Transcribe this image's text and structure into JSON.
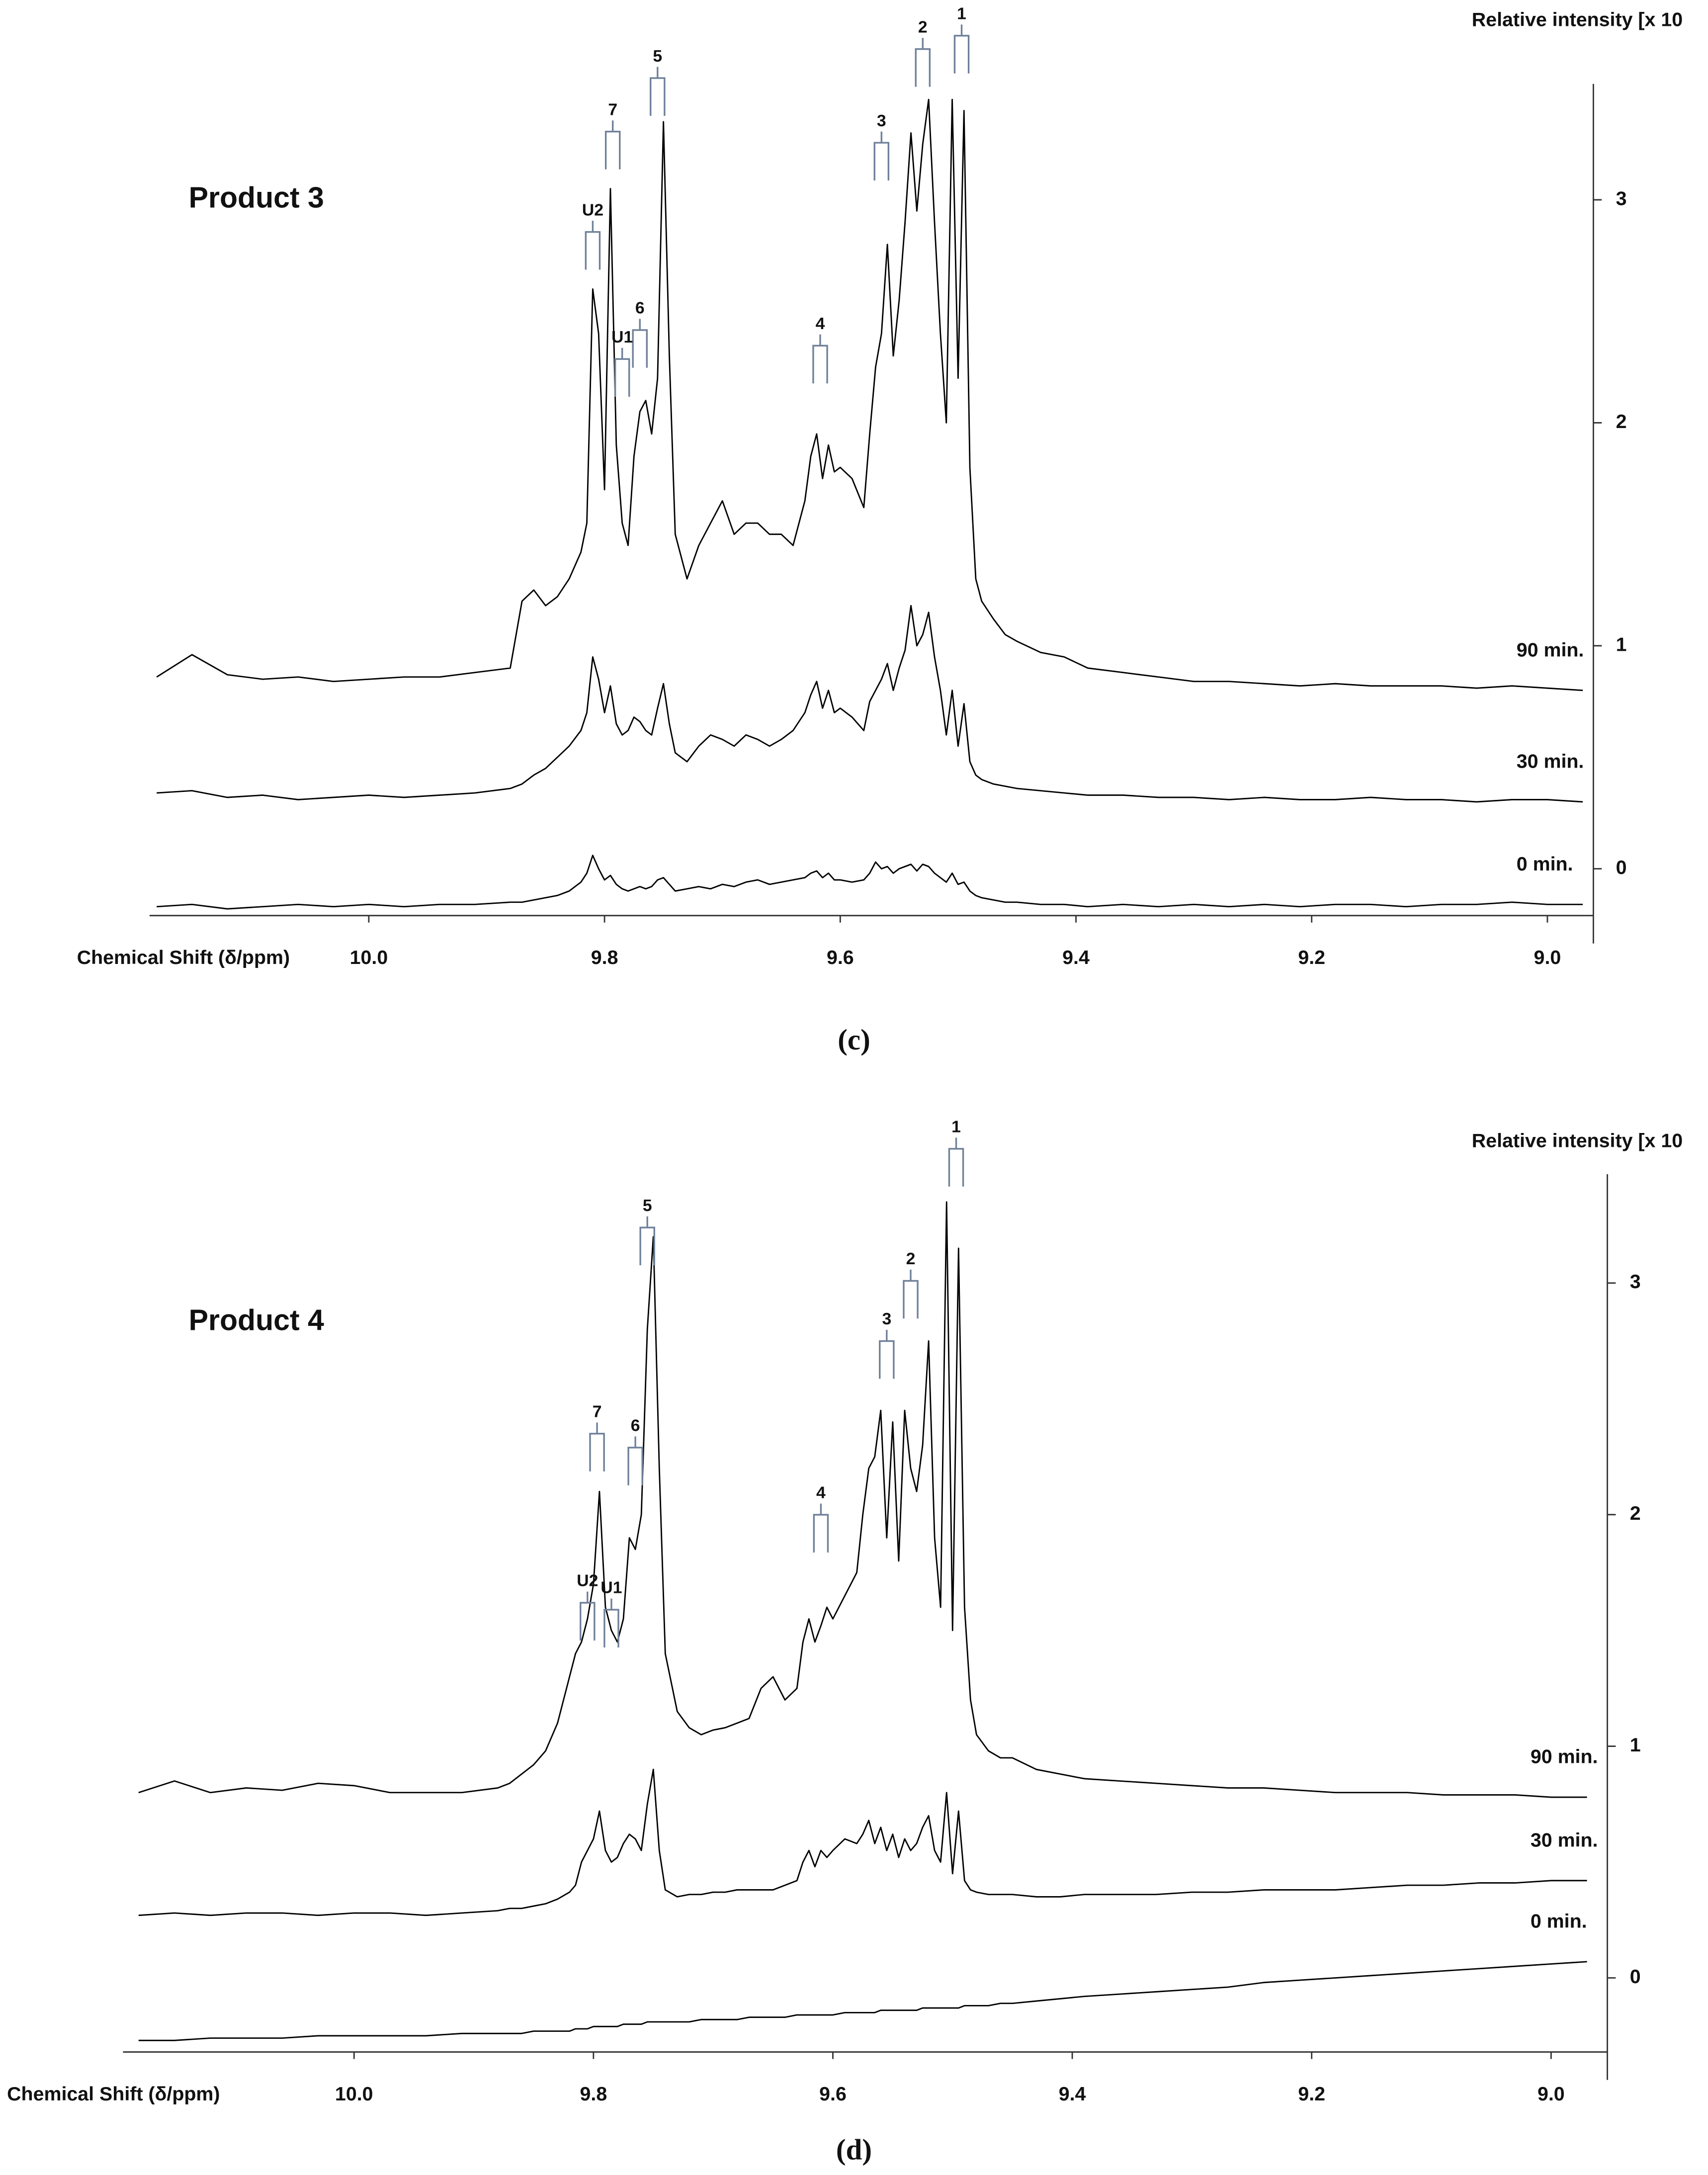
{
  "chart_data": [
    {
      "type": "line",
      "title": "Product 3",
      "caption": "(c)",
      "xlabel": "Chemical Shift (δ/ppm)",
      "ylabel": "Relative intensity [x 10",
      "xlim": [
        10.186,
        8.961
      ],
      "ylim": [
        -0.21,
        3.52
      ],
      "xticks": [
        {
          "value": 10,
          "label": "10.0"
        },
        9.8,
        9.6,
        9.4,
        9.2,
        {
          "value": 9,
          "label": "9.0"
        }
      ],
      "yticks": [
        0,
        1,
        2,
        3
      ],
      "x": [
        10.18,
        10.15,
        10.12,
        10.09,
        10.06,
        10.03,
        10.0,
        9.97,
        9.94,
        9.91,
        9.88,
        9.87,
        9.86,
        9.85,
        9.84,
        9.83,
        9.82,
        9.815,
        9.81,
        9.805,
        9.8,
        9.795,
        9.79,
        9.785,
        9.78,
        9.775,
        9.77,
        9.765,
        9.76,
        9.755,
        9.75,
        9.745,
        9.74,
        9.73,
        9.72,
        9.71,
        9.7,
        9.69,
        9.68,
        9.67,
        9.66,
        9.65,
        9.64,
        9.63,
        9.625,
        9.62,
        9.615,
        9.61,
        9.605,
        9.6,
        9.59,
        9.58,
        9.575,
        9.57,
        9.565,
        9.56,
        9.555,
        9.55,
        9.545,
        9.54,
        9.535,
        9.53,
        9.525,
        9.52,
        9.515,
        9.51,
        9.505,
        9.5,
        9.495,
        9.49,
        9.485,
        9.48,
        9.47,
        9.46,
        9.45,
        9.43,
        9.41,
        9.39,
        9.36,
        9.33,
        9.3,
        9.27,
        9.24,
        9.21,
        9.18,
        9.15,
        9.12,
        9.09,
        9.06,
        9.03,
        9.0,
        8.97
      ],
      "series": [
        {
          "name": "90 min.",
          "color": "#000000",
          "values": [
            0.86,
            0.96,
            0.87,
            0.85,
            0.86,
            0.84,
            0.85,
            0.86,
            0.86,
            0.88,
            0.9,
            1.2,
            1.25,
            1.18,
            1.22,
            1.3,
            1.42,
            1.55,
            2.6,
            2.4,
            1.7,
            3.05,
            1.9,
            1.55,
            1.45,
            1.85,
            2.05,
            2.1,
            1.95,
            2.2,
            3.35,
            2.3,
            1.5,
            1.3,
            1.45,
            1.55,
            1.65,
            1.5,
            1.55,
            1.55,
            1.5,
            1.5,
            1.45,
            1.65,
            1.85,
            1.95,
            1.75,
            1.9,
            1.78,
            1.8,
            1.75,
            1.62,
            1.95,
            2.25,
            2.4,
            2.8,
            2.3,
            2.55,
            2.9,
            3.3,
            2.95,
            3.25,
            3.45,
            2.9,
            2.4,
            2.0,
            3.45,
            2.2,
            3.4,
            1.8,
            1.3,
            1.2,
            1.12,
            1.05,
            1.02,
            0.97,
            0.95,
            0.9,
            0.88,
            0.86,
            0.84,
            0.84,
            0.83,
            0.82,
            0.83,
            0.82,
            0.82,
            0.82,
            0.81,
            0.82,
            0.81,
            0.8
          ]
        },
        {
          "name": "30 min.",
          "color": "#000000",
          "values": [
            0.34,
            0.35,
            0.32,
            0.33,
            0.31,
            0.32,
            0.33,
            0.32,
            0.33,
            0.34,
            0.36,
            0.38,
            0.42,
            0.45,
            0.5,
            0.55,
            0.62,
            0.7,
            0.95,
            0.85,
            0.7,
            0.82,
            0.65,
            0.6,
            0.62,
            0.68,
            0.66,
            0.62,
            0.6,
            0.72,
            0.83,
            0.65,
            0.52,
            0.48,
            0.55,
            0.6,
            0.58,
            0.55,
            0.6,
            0.58,
            0.55,
            0.58,
            0.62,
            0.7,
            0.78,
            0.84,
            0.72,
            0.8,
            0.7,
            0.72,
            0.68,
            0.62,
            0.75,
            0.8,
            0.85,
            0.92,
            0.8,
            0.9,
            0.98,
            1.18,
            1.0,
            1.05,
            1.15,
            0.95,
            0.8,
            0.6,
            0.8,
            0.55,
            0.74,
            0.48,
            0.42,
            0.4,
            0.38,
            0.37,
            0.36,
            0.35,
            0.34,
            0.33,
            0.33,
            0.32,
            0.32,
            0.31,
            0.32,
            0.31,
            0.31,
            0.32,
            0.31,
            0.31,
            0.3,
            0.31,
            0.31,
            0.3
          ]
        },
        {
          "name": "0 min.",
          "color": "#000000",
          "values": [
            -0.17,
            -0.16,
            -0.18,
            -0.17,
            -0.16,
            -0.17,
            -0.16,
            -0.17,
            -0.16,
            -0.16,
            -0.15,
            -0.15,
            -0.14,
            -0.13,
            -0.12,
            -0.1,
            -0.06,
            -0.02,
            0.06,
            0.0,
            -0.05,
            -0.03,
            -0.07,
            -0.09,
            -0.1,
            -0.09,
            -0.08,
            -0.09,
            -0.08,
            -0.05,
            -0.04,
            -0.07,
            -0.1,
            -0.09,
            -0.08,
            -0.09,
            -0.07,
            -0.08,
            -0.06,
            -0.05,
            -0.07,
            -0.06,
            -0.05,
            -0.04,
            -0.02,
            -0.01,
            -0.04,
            -0.02,
            -0.05,
            -0.05,
            -0.06,
            -0.05,
            -0.02,
            0.03,
            0.0,
            0.01,
            -0.02,
            0.0,
            0.01,
            0.02,
            -0.01,
            0.02,
            0.01,
            -0.02,
            -0.04,
            -0.06,
            -0.02,
            -0.07,
            -0.06,
            -0.1,
            -0.12,
            -0.13,
            -0.14,
            -0.15,
            -0.15,
            -0.16,
            -0.16,
            -0.17,
            -0.16,
            -0.17,
            -0.16,
            -0.17,
            -0.16,
            -0.17,
            -0.16,
            -0.16,
            -0.17,
            -0.16,
            -0.16,
            -0.15,
            -0.16,
            -0.16
          ]
        }
      ],
      "annotations": [
        {
          "text": "1",
          "x": 9.497,
          "y": 3.83
        },
        {
          "text": "2",
          "x": 9.53,
          "y": 3.77
        },
        {
          "text": "3",
          "x": 9.565,
          "y": 3.35
        },
        {
          "text": "4",
          "x": 9.617,
          "y": 2.44
        },
        {
          "text": "5",
          "x": 9.755,
          "y": 3.64
        },
        {
          "text": "6",
          "x": 9.77,
          "y": 2.51
        },
        {
          "text": "7",
          "x": 9.793,
          "y": 3.4
        },
        {
          "text": "U1",
          "x": 9.785,
          "y": 2.38
        },
        {
          "text": "U2",
          "x": 9.81,
          "y": 2.95
        }
      ]
    },
    {
      "type": "line",
      "title": "Product 4",
      "caption": "(d)",
      "xlabel": "Chemical Shift (δ/ppm)",
      "ylabel": "Relative intensity [x 10",
      "xlim": [
        10.193,
        8.953
      ],
      "ylim": [
        -0.32,
        3.47
      ],
      "xticks": [
        {
          "value": 10,
          "label": "10.0"
        },
        9.8,
        9.6,
        9.4,
        9.2,
        {
          "value": 9,
          "label": "9.0"
        }
      ],
      "yticks": [
        0,
        1,
        2,
        3
      ],
      "x": [
        10.18,
        10.15,
        10.12,
        10.09,
        10.06,
        10.03,
        10.0,
        9.97,
        9.94,
        9.91,
        9.88,
        9.87,
        9.86,
        9.85,
        9.84,
        9.83,
        9.82,
        9.815,
        9.81,
        9.805,
        9.8,
        9.795,
        9.79,
        9.785,
        9.78,
        9.775,
        9.77,
        9.765,
        9.76,
        9.755,
        9.75,
        9.745,
        9.74,
        9.73,
        9.72,
        9.71,
        9.7,
        9.69,
        9.68,
        9.67,
        9.66,
        9.65,
        9.64,
        9.63,
        9.625,
        9.62,
        9.615,
        9.61,
        9.605,
        9.6,
        9.59,
        9.58,
        9.575,
        9.57,
        9.565,
        9.56,
        9.555,
        9.55,
        9.545,
        9.54,
        9.535,
        9.53,
        9.525,
        9.52,
        9.515,
        9.51,
        9.505,
        9.5,
        9.495,
        9.49,
        9.485,
        9.48,
        9.47,
        9.46,
        9.45,
        9.43,
        9.41,
        9.39,
        9.36,
        9.33,
        9.3,
        9.27,
        9.24,
        9.21,
        9.18,
        9.15,
        9.12,
        9.09,
        9.06,
        9.03,
        9.0,
        8.97
      ],
      "series": [
        {
          "name": "90 min.",
          "color": "#000000",
          "values": [
            0.8,
            0.85,
            0.8,
            0.82,
            0.81,
            0.84,
            0.83,
            0.8,
            0.8,
            0.8,
            0.82,
            0.84,
            0.88,
            0.92,
            0.98,
            1.1,
            1.3,
            1.4,
            1.45,
            1.55,
            1.7,
            2.1,
            1.6,
            1.5,
            1.45,
            1.55,
            1.9,
            1.85,
            2.0,
            2.8,
            3.2,
            2.2,
            1.4,
            1.15,
            1.08,
            1.05,
            1.07,
            1.08,
            1.1,
            1.12,
            1.25,
            1.3,
            1.2,
            1.25,
            1.45,
            1.55,
            1.45,
            1.52,
            1.6,
            1.55,
            1.65,
            1.75,
            2.0,
            2.2,
            2.25,
            2.45,
            1.9,
            2.4,
            1.8,
            2.45,
            2.2,
            2.1,
            2.3,
            2.75,
            1.9,
            1.6,
            3.35,
            1.5,
            3.15,
            1.6,
            1.2,
            1.05,
            0.98,
            0.95,
            0.95,
            0.9,
            0.88,
            0.86,
            0.85,
            0.84,
            0.83,
            0.82,
            0.82,
            0.81,
            0.8,
            0.8,
            0.8,
            0.79,
            0.79,
            0.79,
            0.78,
            0.78
          ]
        },
        {
          "name": "30 min.",
          "color": "#000000",
          "values": [
            0.27,
            0.28,
            0.27,
            0.28,
            0.28,
            0.27,
            0.28,
            0.28,
            0.27,
            0.28,
            0.29,
            0.3,
            0.3,
            0.31,
            0.32,
            0.34,
            0.37,
            0.4,
            0.5,
            0.55,
            0.6,
            0.72,
            0.55,
            0.5,
            0.52,
            0.58,
            0.62,
            0.6,
            0.55,
            0.75,
            0.9,
            0.55,
            0.38,
            0.35,
            0.36,
            0.36,
            0.37,
            0.37,
            0.38,
            0.38,
            0.38,
            0.38,
            0.4,
            0.42,
            0.5,
            0.55,
            0.48,
            0.55,
            0.52,
            0.55,
            0.6,
            0.58,
            0.62,
            0.68,
            0.58,
            0.65,
            0.55,
            0.62,
            0.52,
            0.6,
            0.55,
            0.58,
            0.65,
            0.7,
            0.55,
            0.5,
            0.8,
            0.45,
            0.72,
            0.42,
            0.38,
            0.37,
            0.36,
            0.36,
            0.36,
            0.35,
            0.35,
            0.36,
            0.36,
            0.36,
            0.37,
            0.37,
            0.38,
            0.38,
            0.38,
            0.39,
            0.4,
            0.4,
            0.41,
            0.41,
            0.42,
            0.42
          ]
        },
        {
          "name": "0 min.",
          "color": "#000000",
          "values": [
            -0.27,
            -0.27,
            -0.26,
            -0.26,
            -0.26,
            -0.25,
            -0.25,
            -0.25,
            -0.25,
            -0.24,
            -0.24,
            -0.24,
            -0.24,
            -0.23,
            -0.23,
            -0.23,
            -0.23,
            -0.22,
            -0.22,
            -0.22,
            -0.21,
            -0.21,
            -0.21,
            -0.21,
            -0.21,
            -0.2,
            -0.2,
            -0.2,
            -0.2,
            -0.19,
            -0.19,
            -0.19,
            -0.19,
            -0.19,
            -0.19,
            -0.18,
            -0.18,
            -0.18,
            -0.18,
            -0.17,
            -0.17,
            -0.17,
            -0.17,
            -0.16,
            -0.16,
            -0.16,
            -0.16,
            -0.16,
            -0.16,
            -0.16,
            -0.15,
            -0.15,
            -0.15,
            -0.15,
            -0.15,
            -0.14,
            -0.14,
            -0.14,
            -0.14,
            -0.14,
            -0.14,
            -0.14,
            -0.13,
            -0.13,
            -0.13,
            -0.13,
            -0.13,
            -0.13,
            -0.13,
            -0.12,
            -0.12,
            -0.12,
            -0.12,
            -0.11,
            -0.11,
            -0.1,
            -0.09,
            -0.08,
            -0.07,
            -0.06,
            -0.05,
            -0.04,
            -0.02,
            -0.01,
            0.0,
            0.01,
            0.02,
            0.03,
            0.04,
            0.05,
            0.06,
            0.07
          ]
        }
      ],
      "annotations": [
        {
          "text": "1",
          "x": 9.497,
          "y": 3.67
        },
        {
          "text": "2",
          "x": 9.535,
          "y": 3.1
        },
        {
          "text": "3",
          "x": 9.555,
          "y": 2.84
        },
        {
          "text": "4",
          "x": 9.61,
          "y": 2.09
        },
        {
          "text": "5",
          "x": 9.755,
          "y": 3.33
        },
        {
          "text": "6",
          "x": 9.765,
          "y": 2.38
        },
        {
          "text": "7",
          "x": 9.797,
          "y": 2.44
        },
        {
          "text": "U1",
          "x": 9.785,
          "y": 1.68
        },
        {
          "text": "U2",
          "x": 9.805,
          "y": 1.71
        }
      ]
    }
  ]
}
